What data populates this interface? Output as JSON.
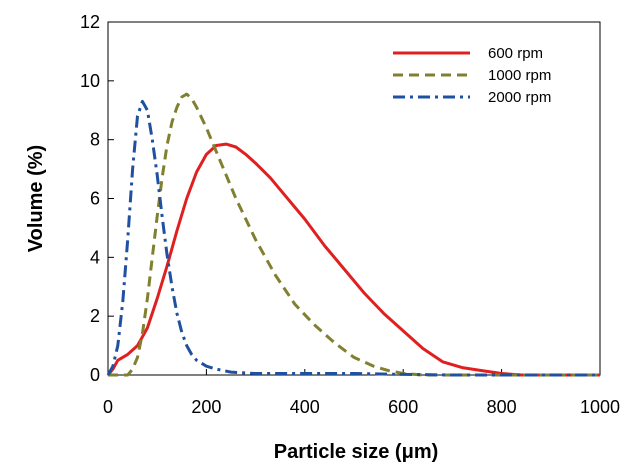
{
  "chart_data": {
    "type": "line",
    "title": "",
    "xlabel": "Particle size (μm)",
    "ylabel": "Volume (%)",
    "xlim": [
      0,
      1000
    ],
    "ylim": [
      0,
      12
    ],
    "x_ticks": [
      0,
      200,
      400,
      600,
      800,
      1000
    ],
    "y_ticks": [
      0,
      2,
      4,
      6,
      8,
      10,
      12
    ],
    "grid": false,
    "legend_position": "top-right",
    "series": [
      {
        "name": "600 rpm",
        "color": "#e02020",
        "style": "solid",
        "x": [
          0,
          10,
          20,
          40,
          60,
          80,
          100,
          120,
          140,
          160,
          180,
          200,
          220,
          240,
          260,
          280,
          300,
          330,
          360,
          400,
          440,
          480,
          520,
          560,
          600,
          640,
          680,
          720,
          760,
          800,
          840,
          900,
          1000
        ],
        "y": [
          0,
          0.2,
          0.5,
          0.7,
          1.0,
          1.6,
          2.6,
          3.7,
          4.9,
          6.0,
          6.9,
          7.5,
          7.8,
          7.85,
          7.75,
          7.5,
          7.2,
          6.7,
          6.1,
          5.3,
          4.4,
          3.6,
          2.8,
          2.1,
          1.5,
          0.9,
          0.45,
          0.25,
          0.15,
          0.05,
          0,
          0,
          0
        ]
      },
      {
        "name": "1000 rpm",
        "color": "#808030",
        "style": "dashed",
        "x": [
          0,
          20,
          40,
          50,
          60,
          70,
          80,
          90,
          100,
          110,
          120,
          130,
          140,
          150,
          160,
          170,
          180,
          200,
          220,
          240,
          260,
          280,
          300,
          340,
          380,
          420,
          460,
          500,
          540,
          570,
          600,
          640,
          700,
          800,
          1000
        ],
        "y": [
          0,
          0,
          0,
          0.2,
          0.6,
          1.4,
          2.6,
          4.0,
          5.4,
          6.7,
          7.8,
          8.6,
          9.1,
          9.45,
          9.55,
          9.4,
          9.1,
          8.4,
          7.6,
          6.8,
          6.0,
          5.3,
          4.6,
          3.4,
          2.4,
          1.7,
          1.1,
          0.6,
          0.3,
          0.15,
          0.05,
          0,
          0,
          0,
          0
        ]
      },
      {
        "name": "2000 rpm",
        "color": "#2050a0",
        "style": "dash-dot",
        "x": [
          0,
          10,
          20,
          30,
          40,
          50,
          60,
          70,
          80,
          90,
          100,
          110,
          120,
          130,
          140,
          150,
          160,
          170,
          180,
          200,
          220,
          250,
          300,
          350,
          400,
          450,
          500,
          600,
          700,
          800,
          1000
        ],
        "y": [
          0,
          0.3,
          1.0,
          2.5,
          4.6,
          7.0,
          8.8,
          9.3,
          9.0,
          8.0,
          6.8,
          5.4,
          4.1,
          3.0,
          2.1,
          1.45,
          1.0,
          0.7,
          0.5,
          0.3,
          0.2,
          0.1,
          0.05,
          0.05,
          0.05,
          0.05,
          0.05,
          0.02,
          0,
          0,
          0
        ]
      }
    ]
  }
}
